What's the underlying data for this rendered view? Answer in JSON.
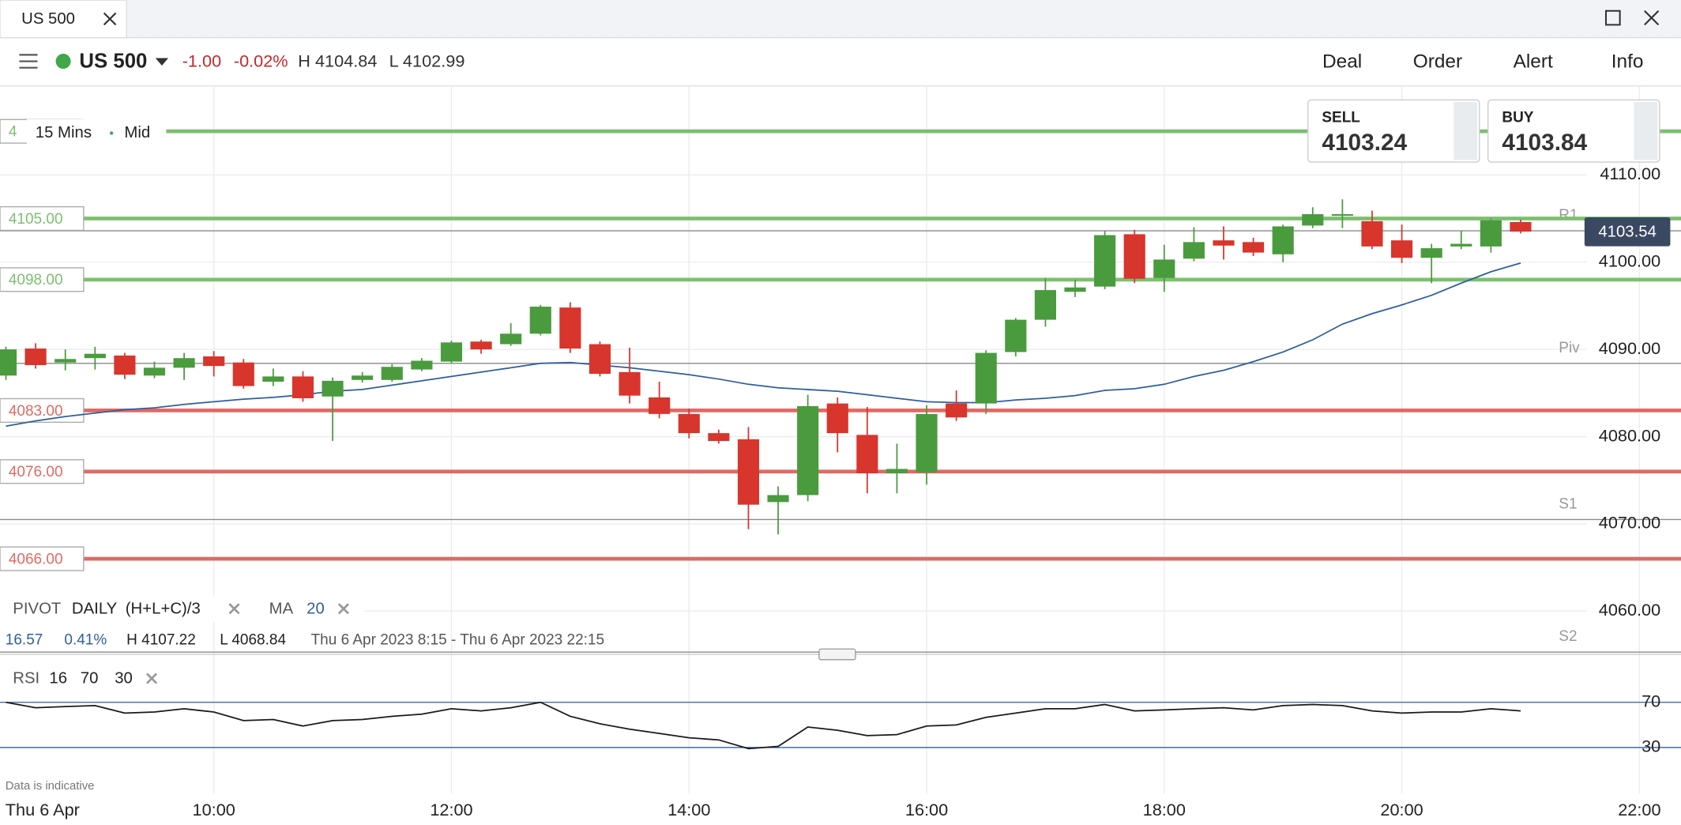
{
  "tab": {
    "title": "US 500"
  },
  "header": {
    "instrument": "US 500",
    "change": "-1.00",
    "change_pct": "-0.02%",
    "high": "H 4104.84",
    "low": "L 4102.99",
    "menu": [
      "Deal",
      "Order",
      "Alert",
      "Info"
    ]
  },
  "quote": {
    "sell_label": "SELL",
    "sell": "4103.24",
    "buy_label": "BUY",
    "buy": "4103.84"
  },
  "chart_settings": {
    "interval": "15 Mins",
    "price_type": "Mid"
  },
  "indicators": {
    "pivot": "PIVOT",
    "pivot_period": "DAILY",
    "pivot_formula": "(H+L+C)/3",
    "ma": "MA",
    "ma_period": "20",
    "rsi": "RSI",
    "rsi_params": [
      "16",
      "70",
      "30"
    ]
  },
  "summary": {
    "change": "16.57",
    "change_pct": "0.41%",
    "high": "H 4107.22",
    "low": "L 4068.84",
    "range": "Thu 6 Apr 2023 8:15 - Thu 6 Apr 2023 22:15"
  },
  "footer": {
    "note": "Data is indicative"
  },
  "chart_data": [
    {
      "type": "candlestick",
      "x_label": "Thu 6 Apr",
      "up_color": "#4a9b3e",
      "down_color": "#d8352c",
      "x": [
        8.25,
        8.5,
        8.75,
        9,
        9.25,
        9.5,
        9.75,
        10,
        10.25,
        10.5,
        10.75,
        11,
        11.25,
        11.5,
        11.75,
        12,
        12.25,
        12.5,
        12.75,
        13,
        13.25,
        13.5,
        13.75,
        14,
        14.25,
        14.5,
        14.75,
        15,
        15.25,
        15.5,
        15.75,
        16,
        16.25,
        16.5,
        16.75,
        17,
        17.25,
        17.5,
        17.75,
        18,
        18.25,
        18.5,
        18.75,
        19,
        19.25,
        19.5,
        19.75,
        20,
        20.25,
        20.5,
        20.75,
        21
      ],
      "open": [
        4087.0,
        4090.1,
        4088.5,
        4089.0,
        4089.3,
        4087.0,
        4087.9,
        4089.2,
        4088.5,
        4086.3,
        4086.9,
        4084.6,
        4086.5,
        4086.5,
        4087.7,
        4088.6,
        4090.9,
        4090.6,
        4091.8,
        4094.8,
        4090.6,
        4087.4,
        4084.5,
        4082.6,
        4080.4,
        4079.7,
        4072.5,
        4073.3,
        4083.8,
        4080.2,
        4075.8,
        4075.9,
        4083.8,
        4083.8,
        4089.7,
        4093.4,
        4096.6,
        4097.2,
        4103.2,
        4098.2,
        4100.4,
        4102.5,
        4102.3,
        4100.9,
        4104.2,
        4105.4,
        4104.7,
        4102.5,
        4100.5,
        4101.8,
        4101.8,
        4104.6
      ],
      "high": [
        4090.3,
        4090.7,
        4090.0,
        4090.3,
        4089.6,
        4088.6,
        4089.6,
        4089.8,
        4088.9,
        4087.8,
        4087.5,
        4086.8,
        4087.4,
        4088.3,
        4089.0,
        4091.0,
        4091.1,
        4093.0,
        4095.1,
        4095.4,
        4090.9,
        4090.2,
        4086.3,
        4083.2,
        4080.8,
        4081.1,
        4074.3,
        4084.8,
        4084.5,
        4083.4,
        4079.2,
        4083.6,
        4085.3,
        4089.9,
        4093.6,
        4098.2,
        4098.0,
        4103.6,
        4103.7,
        4102.0,
        4104.0,
        4104.1,
        4102.8,
        4104.3,
        4106.3,
        4107.2,
        4105.9,
        4104.3,
        4102.1,
        4103.6,
        4105.0,
        4104.9
      ],
      "low": [
        4086.5,
        4087.8,
        4087.6,
        4087.7,
        4086.6,
        4086.7,
        4086.5,
        4086.9,
        4085.5,
        4085.8,
        4084.0,
        4079.5,
        4086.2,
        4086.3,
        4087.5,
        4088.4,
        4089.5,
        4090.4,
        4091.6,
        4089.6,
        4086.9,
        4083.8,
        4082.1,
        4079.8,
        4079.2,
        4069.4,
        4068.8,
        4072.6,
        4078.2,
        4073.5,
        4073.5,
        4074.5,
        4081.8,
        4082.6,
        4089.2,
        4092.6,
        4096.0,
        4096.9,
        4097.6,
        4096.6,
        4100.1,
        4100.3,
        4100.7,
        4100.0,
        4103.9,
        4103.9,
        4101.5,
        4099.9,
        4097.6,
        4101.5,
        4101.1,
        4103.3
      ],
      "close": [
        4090.0,
        4088.2,
        4088.9,
        4089.5,
        4087.1,
        4087.9,
        4089.0,
        4088.1,
        4085.8,
        4086.9,
        4084.4,
        4086.4,
        4087.0,
        4088.0,
        4088.7,
        4090.8,
        4090.0,
        4091.8,
        4094.9,
        4090.1,
        4087.2,
        4084.7,
        4082.6,
        4080.4,
        4079.5,
        4072.2,
        4073.3,
        4083.5,
        4080.4,
        4075.8,
        4076.3,
        4082.6,
        4082.2,
        4089.6,
        4093.4,
        4096.8,
        4097.1,
        4103.1,
        4098.1,
        4100.3,
        4102.3,
        4101.9,
        4101.1,
        4104.1,
        4105.5,
        4105.5,
        4101.8,
        4100.5,
        4101.6,
        4102.1,
        4104.8,
        4103.5
      ],
      "ma": {
        "color": "#2f5f9e",
        "values": [
          4081.2,
          4081.8,
          4082.3,
          4082.7,
          4083.1,
          4083.3,
          4083.7,
          4084.0,
          4084.3,
          4084.5,
          4084.8,
          4085.2,
          4085.4,
          4085.9,
          4086.4,
          4086.9,
          4087.4,
          4087.9,
          4088.4,
          4088.5,
          4088.2,
          4087.9,
          4087.5,
          4087.1,
          4086.6,
          4086.0,
          4085.6,
          4085.4,
          4085.2,
          4084.8,
          4084.4,
          4084.0,
          4083.9,
          4083.9,
          4084.2,
          4084.4,
          4084.7,
          4085.3,
          4085.5,
          4086.0,
          4086.9,
          4087.6,
          4088.6,
          4089.7,
          4091.1,
          4092.9,
          4094.1,
          4095.1,
          4096.2,
          4097.6,
          4098.9,
          4099.9
        ]
      },
      "levels": [
        {
          "value": 4115,
          "label": "4",
          "color": "#7cc06e"
        },
        {
          "value": 4105,
          "label": "4105.00",
          "color": "#7cc06e"
        },
        {
          "value": 4098,
          "label": "4098.00",
          "color": "#7cc06e"
        },
        {
          "value": 4083,
          "label": "4083.00",
          "color": "#e06a64"
        },
        {
          "value": 4076,
          "label": "4076.00",
          "color": "#e06a64"
        },
        {
          "value": 4066,
          "label": "4066.00",
          "color": "#e06a64"
        }
      ],
      "pivots": [
        {
          "name": "R1",
          "value": 4103.6
        },
        {
          "name": "Piv",
          "value": 4088.4
        },
        {
          "name": "S1",
          "value": 4070.5
        },
        {
          "name": "S2",
          "value": 4055.3
        }
      ],
      "current": {
        "value": 4103.54,
        "label": "4103.54"
      },
      "xlim": [
        8.2,
        22.35
      ],
      "xticks": [
        {
          "value": 10,
          "label": "10:00"
        },
        {
          "value": 12,
          "label": "12:00"
        },
        {
          "value": 14,
          "label": "14:00"
        },
        {
          "value": 16,
          "label": "16:00"
        },
        {
          "value": 18,
          "label": "18:00"
        },
        {
          "value": 20,
          "label": "20:00"
        },
        {
          "value": 22,
          "label": "22:00"
        }
      ],
      "ylim": [
        4054.8,
        4120.2
      ],
      "yticks": [
        {
          "value": 4060,
          "label": "4060.00"
        },
        {
          "value": 4070,
          "label": "4070.00"
        },
        {
          "value": 4080,
          "label": "4080.00"
        },
        {
          "value": 4090,
          "label": "4090.00"
        },
        {
          "value": 4100,
          "label": "4100.00"
        },
        {
          "value": 4110,
          "label": "4110.00"
        }
      ],
      "grid": true
    },
    {
      "type": "line",
      "color": "#1a1a1a",
      "band_color": "#2f5f9e",
      "values": [
        70.0,
        65.2,
        66.2,
        67.1,
        60.5,
        61.4,
        64.3,
        61.4,
        53.8,
        54.8,
        49.0,
        53.8,
        54.8,
        57.6,
        59.5,
        64.3,
        62.4,
        65.2,
        70.0,
        57.6,
        51.0,
        46.2,
        42.4,
        38.6,
        36.7,
        29.0,
        31.0,
        48.1,
        45.2,
        40.5,
        41.4,
        49.0,
        50.0,
        56.7,
        60.5,
        64.3,
        64.3,
        68.1,
        62.4,
        63.3,
        64.3,
        65.2,
        63.3,
        67.1,
        68.1,
        67.1,
        62.4,
        60.5,
        61.4,
        61.4,
        64.3,
        62.4
      ],
      "ylim": [
        8,
        103
      ],
      "yticks": [
        70,
        30
      ]
    }
  ]
}
